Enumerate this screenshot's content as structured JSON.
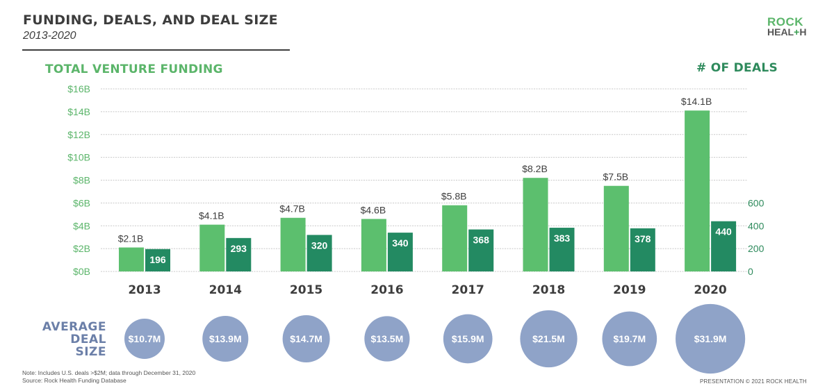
{
  "header": {
    "title": "FUNDING, DEALS, AND DEAL SIZE",
    "subtitle": "2013-2020",
    "logo_line1": "ROCK",
    "logo_line2_a": "HEAL",
    "logo_line2_plus": "+",
    "logo_line2_b": "H"
  },
  "colors": {
    "funding": "#5cbf6e",
    "deals": "#238a62",
    "bubble": "#8fa3c8",
    "grid": "#c8c8c8"
  },
  "chart_data": {
    "type": "bar",
    "title": "FUNDING, DEALS, AND DEAL SIZE",
    "subtitle": "2013-2020",
    "categories": [
      "2013",
      "2014",
      "2015",
      "2016",
      "2017",
      "2018",
      "2019",
      "2020"
    ],
    "series": [
      {
        "name": "Total Venture Funding",
        "axis": "left",
        "unit": "$B",
        "values": [
          2.1,
          4.1,
          4.7,
          4.6,
          5.8,
          8.2,
          7.5,
          14.1
        ],
        "labels": [
          "$2.1B",
          "$4.1B",
          "$4.7B",
          "$4.6B",
          "$5.8B",
          "$8.2B",
          "$7.5B",
          "$14.1B"
        ]
      },
      {
        "name": "# of Deals",
        "axis": "right",
        "values": [
          196,
          293,
          320,
          340,
          368,
          383,
          378,
          440
        ],
        "labels": [
          "196",
          "293",
          "320",
          "340",
          "368",
          "383",
          "378",
          "440"
        ]
      }
    ],
    "average_deal_size": {
      "label_lines": [
        "AVERAGE",
        "DEAL",
        "SIZE"
      ],
      "values": [
        10.7,
        13.9,
        14.7,
        13.5,
        15.9,
        21.5,
        19.7,
        31.9
      ],
      "labels": [
        "$10.7M",
        "$13.9M",
        "$14.7M",
        "$13.5M",
        "$15.9M",
        "$21.5M",
        "$19.7M",
        "$31.9M"
      ]
    },
    "ylabel_left": "TOTAL VENTURE FUNDING",
    "ylabel_right": "# OF DEALS",
    "ylim_left": [
      0,
      16
    ],
    "yticks_left": [
      "$0B",
      "$2B",
      "$4B",
      "$6B",
      "$8B",
      "$10B",
      "$12B",
      "$14B",
      "$16B"
    ],
    "ylim_right": [
      0,
      1600
    ],
    "yticks_right": [
      "0",
      "200",
      "400",
      "600"
    ],
    "grid": true,
    "legend": "none"
  },
  "footer": {
    "note": "Note: Includes U.S. deals >$2M; data through December 31, 2020",
    "source": "Source: Rock Health Funding Database",
    "copyright": "PRESENTATION © 2021 ROCK HEALTH"
  }
}
